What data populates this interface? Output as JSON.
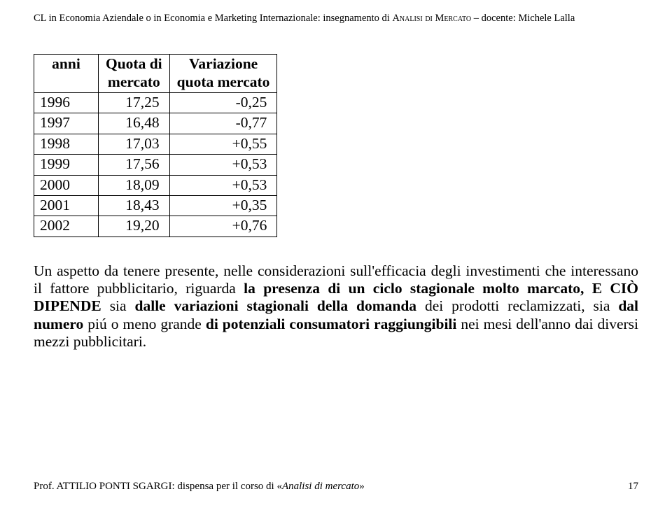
{
  "header": {
    "prefix": "CL in Economia Aziendale o in Economia e Marketing Internazionale: insegnamento di ",
    "smallcaps1": "Analisi di Mercato",
    "dash": " – docente: Michele Lalla"
  },
  "table": {
    "headers": {
      "c1a": "anni",
      "c2a": "Quota di",
      "c2b": "mercato",
      "c3a": "Variazione",
      "c3b": "quota mercato"
    },
    "rows": [
      {
        "year": "1996",
        "share": "17,25",
        "delta": "-0,25"
      },
      {
        "year": "1997",
        "share": "16,48",
        "delta": "-0,77"
      },
      {
        "year": "1998",
        "share": "17,03",
        "delta": "+0,55"
      },
      {
        "year": "1999",
        "share": "17,56",
        "delta": "+0,53"
      },
      {
        "year": "2000",
        "share": "18,09",
        "delta": "+0,53"
      },
      {
        "year": "2001",
        "share": "18,43",
        "delta": "+0,35"
      },
      {
        "year": "2002",
        "share": "19,20",
        "delta": "+0,76"
      }
    ]
  },
  "paragraph": {
    "seg1": "Un aspetto da tenere presente, nelle considerazioni sull'efficacia degli investimenti che interessano il fattore pubblicitario, riguarda ",
    "bold1": "la presenza di un ciclo stagionale molto marcato, E CIÒ DIPENDE",
    "seg2": " sia ",
    "bold2": "dalle variazioni stagionali della domanda",
    "seg3": " dei prodotti reclamizzati, sia ",
    "bold3": "dal numero",
    "seg4": " piú o meno grande ",
    "bold4": "di potenziali consumatori raggiungibili",
    "seg5": " nei mesi dell'anno dai diversi mezzi pubblicitari."
  },
  "footer": {
    "author": "Prof. ATTILIO PONTI SGARGI: dispensa per il corso di «",
    "coursetitle": "Analisi di mercato",
    "closeq": "»",
    "page": "17"
  }
}
